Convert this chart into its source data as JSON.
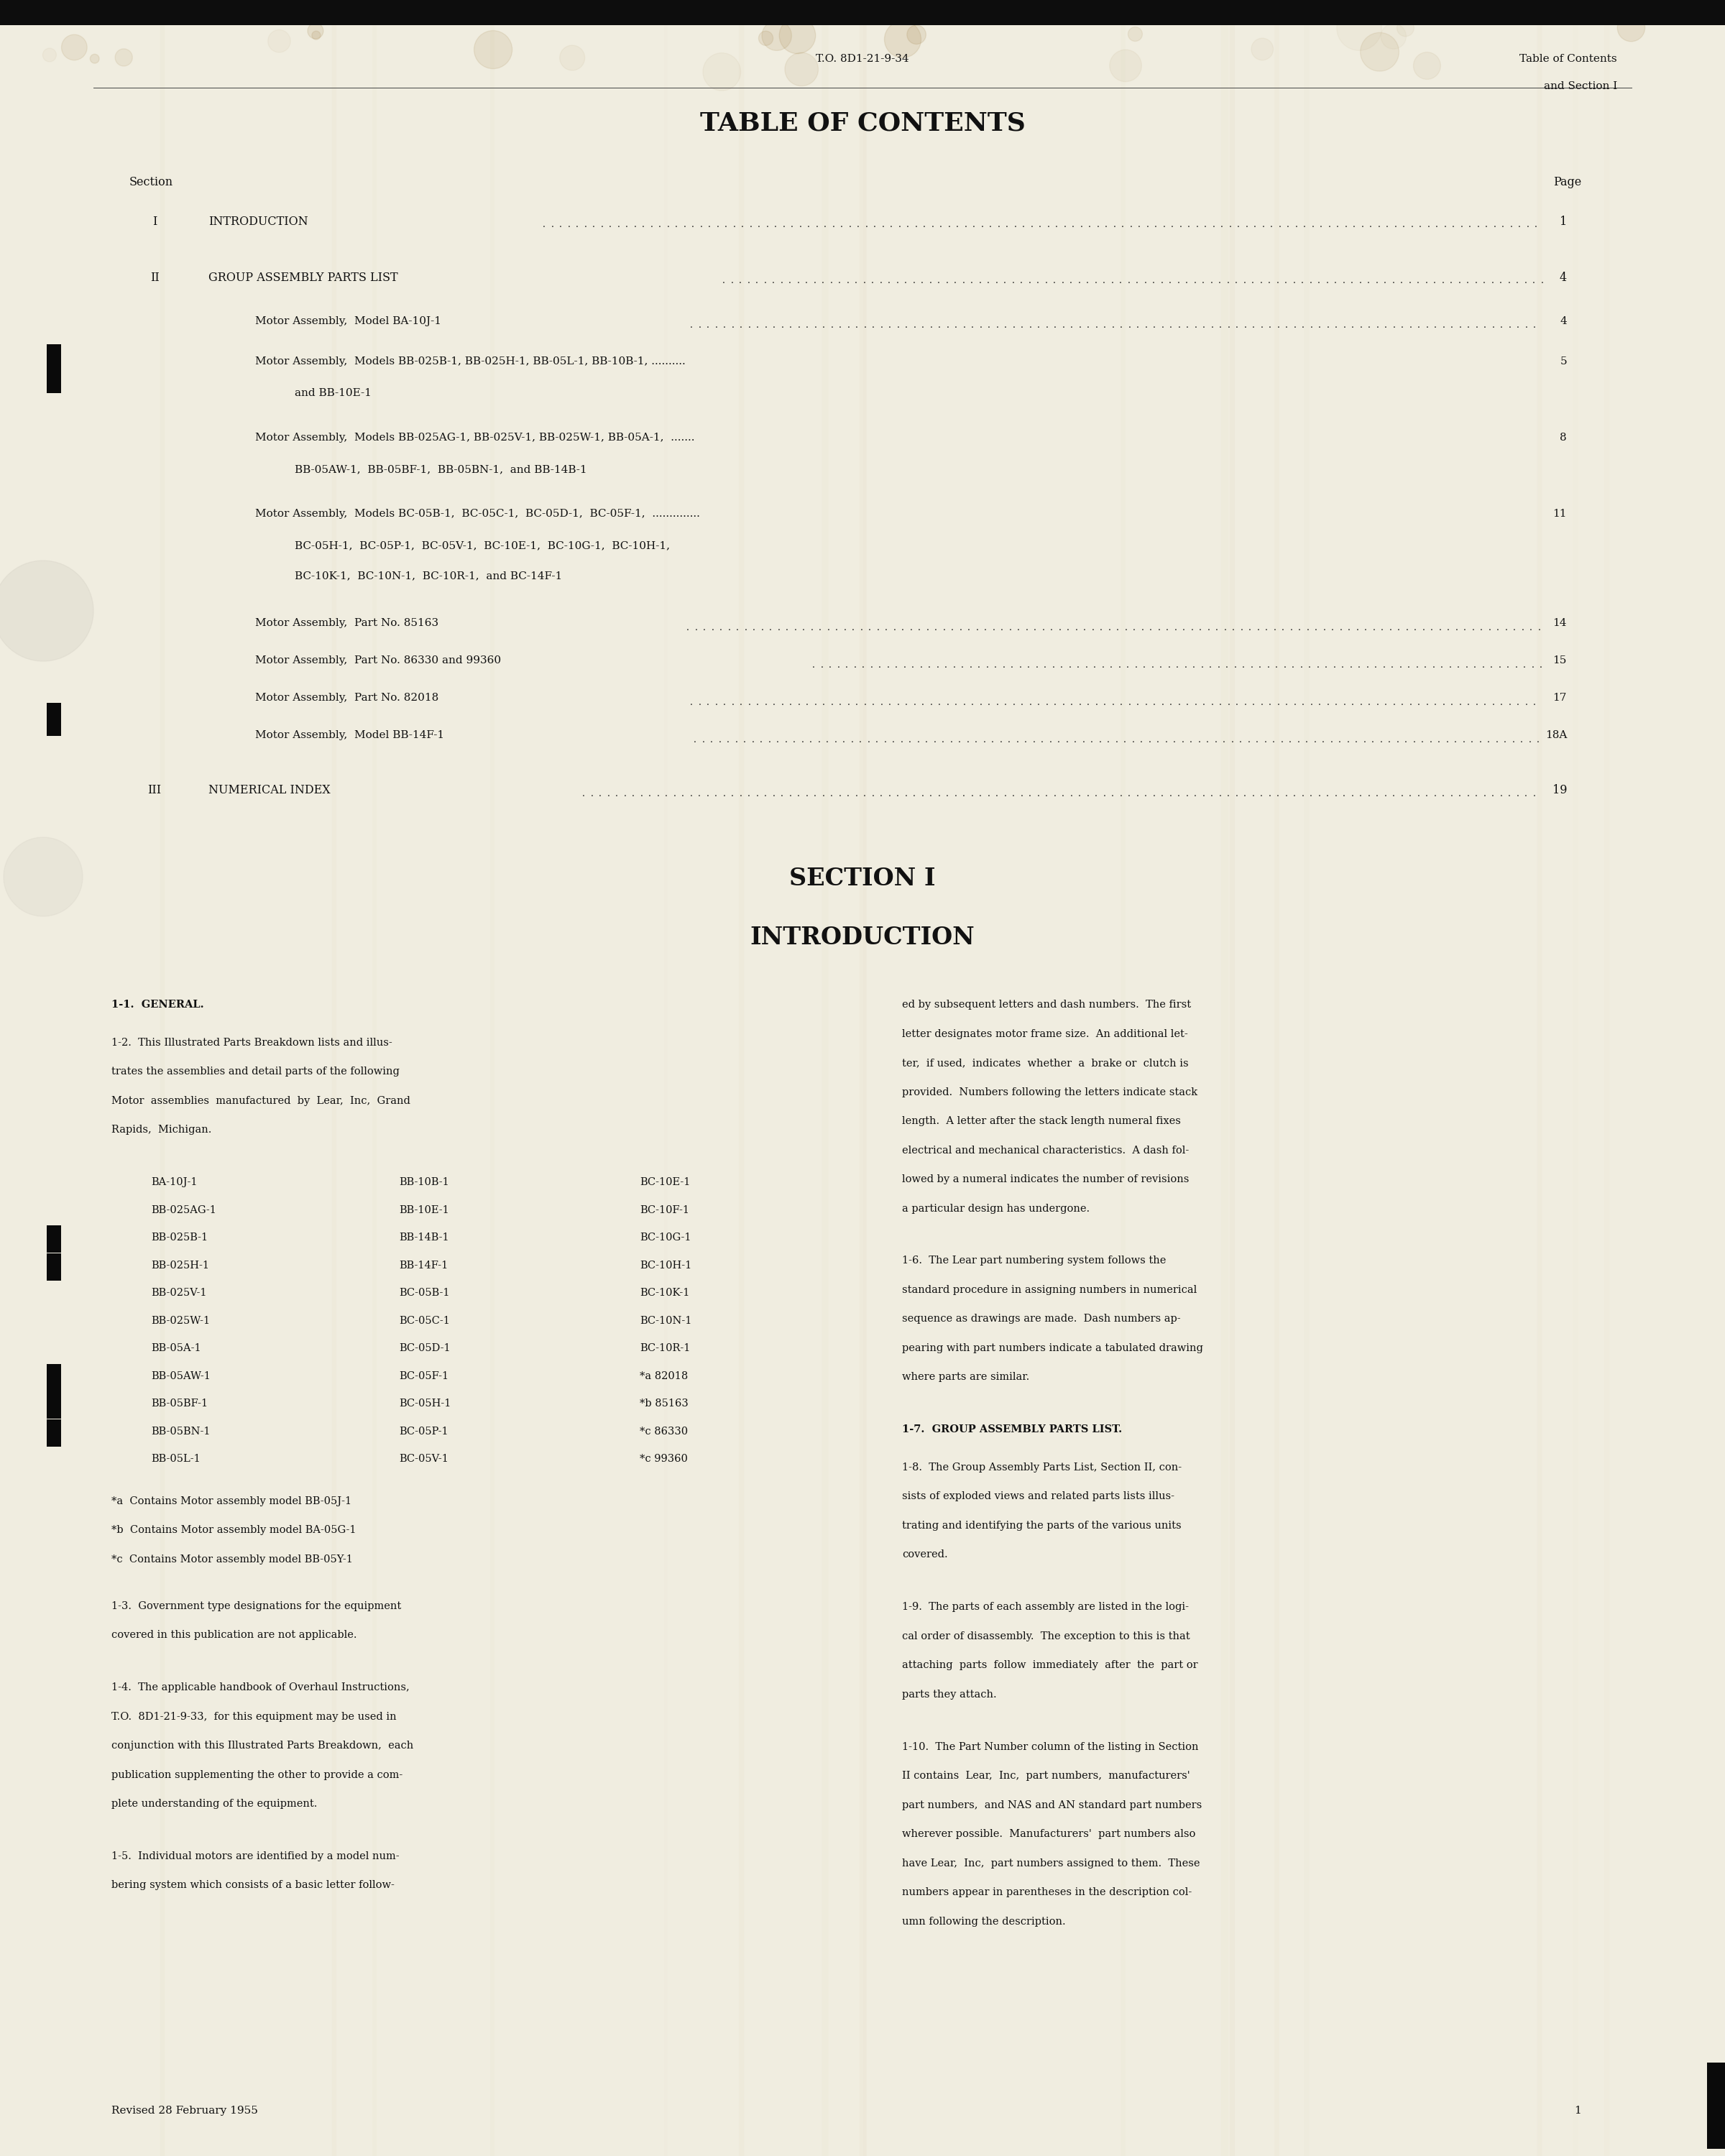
{
  "bg_color": "#f0ede0",
  "text_color": "#111111",
  "header_to": "T.O. 8D1-21-9-34",
  "header_right_1": "Table of Contents",
  "header_right_2": "and Section I",
  "toc_title": "TABLE OF CONTENTS",
  "section_label": "Section",
  "page_label": "Page",
  "section2_title": "SECTION I",
  "section2_subtitle": "INTRODUCTION",
  "para_11_title": "1-1.  GENERAL.",
  "para_12": "1-2.  This Illustrated Parts Breakdown lists and illus-\ntrates the assemblies and detail parts of the following\nMotor  assemblies  manufactured  by  Lear,  Inc,  Grand\nRapids,  Michigan.",
  "parts_list_col1": [
    "BA-10J-1",
    "BB-025AG-1",
    "BB-025B-1",
    "BB-025H-1",
    "BB-025V-1",
    "BB-025W-1",
    "BB-05A-1",
    "BB-05AW-1",
    "BB-05BF-1",
    "BB-05BN-1",
    "BB-05L-1"
  ],
  "parts_list_col2": [
    "BB-10B-1",
    "BB-10E-1",
    "BB-14B-1",
    "BB-14F-1",
    "BC-05B-1",
    "BC-05C-1",
    "BC-05D-1",
    "BC-05F-1",
    "BC-05H-1",
    "BC-05P-1",
    "BC-05V-1"
  ],
  "parts_list_col3": [
    "BC-10E-1",
    "BC-10F-1",
    "BC-10G-1",
    "BC-10H-1",
    "BC-10K-1",
    "BC-10N-1",
    "BC-10R-1",
    "*a 82018",
    "*b 85163",
    "*c 86330",
    "*c 99360"
  ],
  "black_bar_rows_col1": [
    2,
    3,
    7,
    8,
    9
  ],
  "footnote_a": "*a  Contains Motor assembly model BB-05J-1",
  "footnote_b": "*b  Contains Motor assembly model BA-05G-1",
  "footnote_c": "*c  Contains Motor assembly model BB-05Y-1",
  "para_13": "1-3.  Government type designations for the equipment\ncovered in this publication are not applicable.",
  "para_14": "1-4.  The applicable handbook of Overhaul Instructions,\nT.O.  8D1-21-9-33,  for this equipment may be used in\nconjunction with this Illustrated Parts Breakdown,  each\npublication supplementing the other to provide a com-\nplete understanding of the equipment.",
  "para_15": "1-5.  Individual motors are identified by a model num-\nbering system which consists of a basic letter follow-",
  "para_15_right": "ed by subsequent letters and dash numbers.  The first\nletter designates motor frame size.  An additional let-\nter,  if used,  indicates  whether  a  brake or  clutch is\nprovided.  Numbers following the letters indicate stack\nlength.  A letter after the stack length numeral fixes\nelectrical and mechanical characteristics.  A dash fol-\nlowed by a numeral indicates the number of revisions\na particular design has undergone.",
  "para_16": "1-6.  The Lear part numbering system follows the\nstandard procedure in assigning numbers in numerical\nsequence as drawings are made.  Dash numbers ap-\npearing with part numbers indicate a tabulated drawing\nwhere parts are similar.",
  "para_17_title": "1-7.  GROUP ASSEMBLY PARTS LIST.",
  "para_18": "1-8.  The Group Assembly Parts List, Section II, con-\nsists of exploded views and related parts lists illus-\ntrating and identifying the parts of the various units\ncovered.",
  "para_19": "1-9.  The parts of each assembly are listed in the logi-\ncal order of disassembly.  The exception to this is that\nattaching  parts  follow  immediately  after  the  part or\nparts they attach.",
  "para_110": "1-10.  The Part Number column of the listing in Section\nII contains  Lear,  Inc,  part numbers,  manufacturers'\npart numbers,  and NAS and AN standard part numbers\nwherever possible.  Manufacturers'  part numbers also\nhave Lear,  Inc,  part numbers assigned to them.  These\nnumbers appear in parentheses in the description col-\numn following the description.",
  "footer_text": "Revised 28 February 1955",
  "footer_page": "1"
}
